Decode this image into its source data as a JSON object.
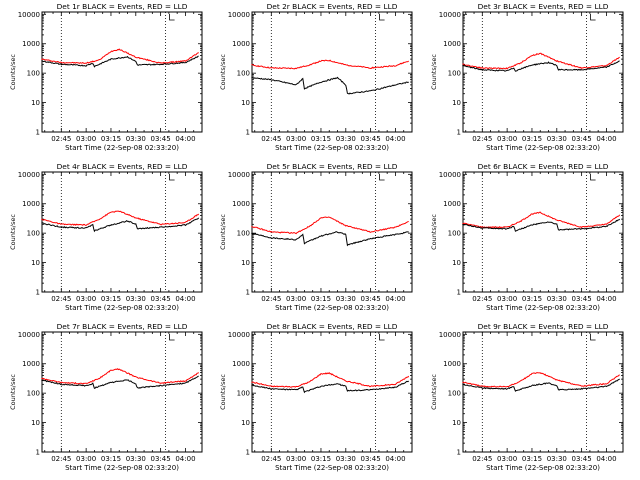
{
  "page": {
    "background": "#ffffff",
    "events_color": "#000000",
    "lld_color": "#ff0000"
  },
  "chart_data": [
    {
      "type": "line",
      "title": "Det 1r BLACK = Events, RED = LLD",
      "xlabel": "Start Time (22-Sep-08 02:33:20)",
      "ylabel": "Counts/sec",
      "xlim": [
        "02:33:20",
        "04:10:00"
      ],
      "x_ticks": [
        "02:45",
        "03:00",
        "03:15",
        "03:30",
        "03:45",
        "04:00"
      ],
      "ylim": [
        1,
        12000
      ],
      "y_scale": "log",
      "y_ticks": [
        "1",
        "10",
        "100",
        "1000",
        "10000"
      ],
      "dotted_markers": [
        "02:45",
        "03:48"
      ],
      "series": [
        {
          "name": "LLD",
          "color": "#ff0000",
          "x": [
            "02:33",
            "02:45",
            "03:00",
            "03:08",
            "03:15",
            "03:20",
            "03:30",
            "03:45",
            "04:00",
            "04:08"
          ],
          "values": [
            300,
            230,
            220,
            280,
            550,
            650,
            350,
            220,
            260,
            500
          ]
        },
        {
          "name": "Events",
          "color": "#000000",
          "x": [
            "02:33",
            "02:45",
            "03:00",
            "03:04",
            "03:05",
            "03:15",
            "03:25",
            "03:30",
            "03:31",
            "03:45",
            "04:00",
            "04:08"
          ],
          "values": [
            260,
            200,
            180,
            220,
            170,
            300,
            360,
            250,
            190,
            200,
            230,
            380
          ]
        }
      ]
    },
    {
      "type": "line",
      "title": "Det 2r BLACK = Events, RED = LLD",
      "xlabel": "Start Time (22-Sep-08 02:33:20)",
      "ylabel": "Counts/sec",
      "xlim": [
        "02:33:20",
        "04:10:00"
      ],
      "x_ticks": [
        "02:45",
        "03:00",
        "03:15",
        "03:30",
        "03:45",
        "04:00"
      ],
      "ylim": [
        1,
        12000
      ],
      "y_scale": "log",
      "y_ticks": [
        "1",
        "10",
        "100",
        "1000",
        "10000"
      ],
      "dotted_markers": [
        "02:45",
        "03:48"
      ],
      "series": [
        {
          "name": "LLD",
          "color": "#ff0000",
          "x": [
            "02:33",
            "02:45",
            "03:00",
            "03:08",
            "03:15",
            "03:20",
            "03:30",
            "03:45",
            "04:00",
            "04:08"
          ],
          "values": [
            190,
            150,
            145,
            190,
            260,
            270,
            190,
            150,
            180,
            260
          ]
        },
        {
          "name": "Events",
          "color": "#000000",
          "x": [
            "02:33",
            "02:45",
            "03:00",
            "03:04",
            "03:05",
            "03:15",
            "03:25",
            "03:30",
            "03:31",
            "03:45",
            "04:00",
            "04:08"
          ],
          "values": [
            70,
            60,
            40,
            65,
            30,
            50,
            70,
            40,
            20,
            25,
            40,
            50
          ]
        }
      ]
    },
    {
      "type": "line",
      "title": "Det 3r BLACK = Events, RED = LLD",
      "xlabel": "Start Time (22-Sep-08 02:33:20)",
      "ylabel": "Counts/sec",
      "xlim": [
        "02:33:20",
        "04:10:00"
      ],
      "x_ticks": [
        "02:45",
        "03:00",
        "03:15",
        "03:30",
        "03:45",
        "04:00"
      ],
      "ylim": [
        1,
        12000
      ],
      "y_scale": "log",
      "y_ticks": [
        "1",
        "10",
        "100",
        "1000",
        "10000"
      ],
      "dotted_markers": [
        "02:45",
        "03:48"
      ],
      "series": [
        {
          "name": "LLD",
          "color": "#ff0000",
          "x": [
            "02:33",
            "02:45",
            "03:00",
            "03:08",
            "03:15",
            "03:20",
            "03:30",
            "03:45",
            "04:00",
            "04:08"
          ],
          "values": [
            200,
            150,
            145,
            220,
            400,
            470,
            260,
            150,
            180,
            350
          ]
        },
        {
          "name": "Events",
          "color": "#000000",
          "x": [
            "02:33",
            "02:45",
            "03:00",
            "03:04",
            "03:05",
            "03:15",
            "03:25",
            "03:30",
            "03:31",
            "03:45",
            "04:00",
            "04:08"
          ],
          "values": [
            180,
            130,
            120,
            150,
            120,
            190,
            230,
            180,
            130,
            130,
            160,
            260
          ]
        }
      ]
    },
    {
      "type": "line",
      "title": "Det 4r BLACK = Events, RED = LLD",
      "xlabel": "Start Time (22-Sep-08 02:33:20)",
      "ylabel": "Counts/sec",
      "xlim": [
        "02:33:20",
        "04:10:00"
      ],
      "x_ticks": [
        "02:45",
        "03:00",
        "03:15",
        "03:30",
        "03:45",
        "04:00"
      ],
      "ylim": [
        1,
        12000
      ],
      "y_scale": "log",
      "y_ticks": [
        "1",
        "10",
        "100",
        "1000",
        "10000"
      ],
      "dotted_markers": [
        "02:45",
        "03:48"
      ],
      "series": [
        {
          "name": "LLD",
          "color": "#ff0000",
          "x": [
            "02:33",
            "02:45",
            "03:00",
            "03:08",
            "03:15",
            "03:20",
            "03:30",
            "03:45",
            "04:00",
            "04:08"
          ],
          "values": [
            300,
            200,
            190,
            300,
            520,
            560,
            330,
            200,
            230,
            450
          ]
        },
        {
          "name": "Events",
          "color": "#000000",
          "x": [
            "02:33",
            "02:45",
            "03:00",
            "03:04",
            "03:05",
            "03:15",
            "03:25",
            "03:30",
            "03:31",
            "03:45",
            "04:00",
            "04:08"
          ],
          "values": [
            220,
            160,
            150,
            190,
            120,
            190,
            260,
            200,
            140,
            160,
            190,
            330
          ]
        }
      ]
    },
    {
      "type": "line",
      "title": "Det 5r BLACK = Events, RED = LLD",
      "xlabel": "Start Time (22-Sep-08 02:33:20)",
      "ylabel": "Counts/sec",
      "xlim": [
        "02:33:20",
        "04:10:00"
      ],
      "x_ticks": [
        "02:45",
        "03:00",
        "03:15",
        "03:30",
        "03:45",
        "04:00"
      ],
      "ylim": [
        1,
        12000
      ],
      "y_scale": "log",
      "y_ticks": [
        "1",
        "10",
        "100",
        "1000",
        "10000"
      ],
      "dotted_markers": [
        "02:45",
        "03:48"
      ],
      "series": [
        {
          "name": "LLD",
          "color": "#ff0000",
          "x": [
            "02:33",
            "02:45",
            "03:00",
            "03:08",
            "03:15",
            "03:20",
            "03:30",
            "03:45",
            "04:00",
            "04:08"
          ],
          "values": [
            170,
            110,
            100,
            170,
            330,
            350,
            180,
            110,
            160,
            250
          ]
        },
        {
          "name": "Events",
          "color": "#000000",
          "x": [
            "02:33",
            "02:45",
            "03:00",
            "03:04",
            "03:05",
            "03:15",
            "03:25",
            "03:30",
            "03:31",
            "03:45",
            "04:00",
            "04:08"
          ],
          "values": [
            100,
            70,
            60,
            90,
            45,
            80,
            110,
            90,
            40,
            65,
            90,
            110
          ]
        }
      ]
    },
    {
      "type": "line",
      "title": "Det 6r BLACK = Events, RED = LLD",
      "xlabel": "Start Time (22-Sep-08 02:33:20)",
      "ylabel": "Counts/sec",
      "xlim": [
        "02:33:20",
        "04:10:00"
      ],
      "x_ticks": [
        "02:45",
        "03:00",
        "03:15",
        "03:30",
        "03:45",
        "04:00"
      ],
      "ylim": [
        1,
        12000
      ],
      "y_scale": "log",
      "y_ticks": [
        "1",
        "10",
        "100",
        "1000",
        "10000"
      ],
      "dotted_markers": [
        "02:45",
        "03:48"
      ],
      "series": [
        {
          "name": "LLD",
          "color": "#ff0000",
          "x": [
            "02:33",
            "02:45",
            "03:00",
            "03:08",
            "03:15",
            "03:20",
            "03:30",
            "03:45",
            "04:00",
            "04:08"
          ],
          "values": [
            220,
            160,
            160,
            250,
            450,
            500,
            280,
            160,
            200,
            420
          ]
        },
        {
          "name": "Events",
          "color": "#000000",
          "x": [
            "02:33",
            "02:45",
            "03:00",
            "03:04",
            "03:05",
            "03:15",
            "03:25",
            "03:30",
            "03:31",
            "03:45",
            "04:00",
            "04:08"
          ],
          "values": [
            200,
            150,
            140,
            170,
            120,
            190,
            240,
            200,
            130,
            140,
            170,
            300
          ]
        }
      ]
    },
    {
      "type": "line",
      "title": "Det 7r BLACK = Events, RED = LLD",
      "xlabel": "Start Time (22-Sep-08 02:33:20)",
      "ylabel": "Counts/sec",
      "xlim": [
        "02:33:20",
        "04:10:00"
      ],
      "x_ticks": [
        "02:45",
        "03:00",
        "03:15",
        "03:30",
        "03:45",
        "04:00"
      ],
      "ylim": [
        1,
        12000
      ],
      "y_scale": "log",
      "y_ticks": [
        "1",
        "10",
        "100",
        "1000",
        "10000"
      ],
      "dotted_markers": [
        "02:45",
        "03:48"
      ],
      "series": [
        {
          "name": "LLD",
          "color": "#ff0000",
          "x": [
            "02:33",
            "02:45",
            "03:00",
            "03:08",
            "03:15",
            "03:20",
            "03:30",
            "03:45",
            "04:00",
            "04:08"
          ],
          "values": [
            320,
            230,
            210,
            320,
            600,
            660,
            350,
            220,
            260,
            500
          ]
        },
        {
          "name": "Events",
          "color": "#000000",
          "x": [
            "02:33",
            "02:45",
            "03:00",
            "03:04",
            "03:05",
            "03:15",
            "03:25",
            "03:30",
            "03:31",
            "03:45",
            "04:00",
            "04:08"
          ],
          "values": [
            280,
            200,
            180,
            210,
            150,
            230,
            280,
            210,
            150,
            180,
            220,
            380
          ]
        }
      ]
    },
    {
      "type": "line",
      "title": "Det 8r BLACK = Events, RED = LLD",
      "xlabel": "Start Time (22-Sep-08 02:33:20)",
      "ylabel": "Counts/sec",
      "xlim": [
        "02:33:20",
        "04:10:00"
      ],
      "x_ticks": [
        "02:45",
        "03:00",
        "03:15",
        "03:30",
        "03:45",
        "04:00"
      ],
      "ylim": [
        1,
        12000
      ],
      "y_scale": "log",
      "y_ticks": [
        "1",
        "10",
        "100",
        "1000",
        "10000"
      ],
      "dotted_markers": [
        "02:45",
        "03:48"
      ],
      "series": [
        {
          "name": "LLD",
          "color": "#ff0000",
          "x": [
            "02:33",
            "02:45",
            "03:00",
            "03:08",
            "03:15",
            "03:20",
            "03:30",
            "03:45",
            "04:00",
            "04:08"
          ],
          "values": [
            240,
            170,
            165,
            240,
            450,
            480,
            260,
            170,
            200,
            380
          ]
        },
        {
          "name": "Events",
          "color": "#000000",
          "x": [
            "02:33",
            "02:45",
            "03:00",
            "03:04",
            "03:05",
            "03:15",
            "03:25",
            "03:30",
            "03:31",
            "03:45",
            "04:00",
            "04:08"
          ],
          "values": [
            190,
            140,
            130,
            160,
            110,
            170,
            210,
            170,
            120,
            130,
            160,
            260
          ]
        }
      ]
    },
    {
      "type": "line",
      "title": "Det 9r BLACK = Events, RED = LLD",
      "xlabel": "Start Time (22-Sep-08 02:33:20)",
      "ylabel": "Counts/sec",
      "xlim": [
        "02:33:20",
        "04:10:00"
      ],
      "x_ticks": [
        "02:45",
        "03:00",
        "03:15",
        "03:30",
        "03:45",
        "04:00"
      ],
      "ylim": [
        1,
        12000
      ],
      "y_scale": "log",
      "y_ticks": [
        "1",
        "10",
        "100",
        "1000",
        "10000"
      ],
      "dotted_markers": [
        "02:45",
        "03:48"
      ],
      "series": [
        {
          "name": "LLD",
          "color": "#ff0000",
          "x": [
            "02:33",
            "02:45",
            "03:00",
            "03:08",
            "03:15",
            "03:20",
            "03:30",
            "03:45",
            "04:00",
            "04:08"
          ],
          "values": [
            240,
            170,
            165,
            250,
            460,
            500,
            280,
            175,
            210,
            420
          ]
        },
        {
          "name": "Events",
          "color": "#000000",
          "x": [
            "02:33",
            "02:45",
            "03:00",
            "03:04",
            "03:05",
            "03:15",
            "03:25",
            "03:30",
            "03:31",
            "03:45",
            "04:00",
            "04:08"
          ],
          "values": [
            200,
            150,
            140,
            170,
            120,
            180,
            220,
            180,
            130,
            140,
            170,
            300
          ]
        }
      ]
    }
  ]
}
